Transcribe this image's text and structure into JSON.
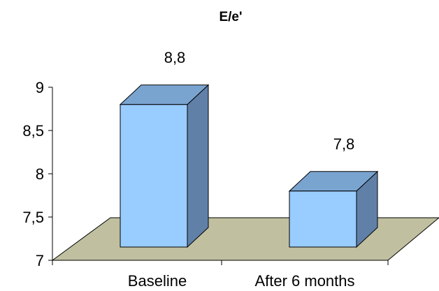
{
  "chart_data": {
    "type": "bar",
    "title": "E/e'",
    "categories": [
      "Baseline",
      "After 6 months"
    ],
    "series": [
      {
        "values": [
          8.8,
          7.8
        ],
        "data_labels": [
          "8,8",
          "7,8"
        ]
      }
    ],
    "ylim": [
      7,
      9
    ],
    "yticks": [
      7,
      7.5,
      8,
      8.5,
      9
    ],
    "ytick_labels": [
      "7",
      "7,5",
      "8",
      "8,5",
      "9"
    ],
    "grid": false,
    "legend": "none",
    "style": "3d-column",
    "colors": {
      "bar_front": "#99ccff",
      "bar_side": "#6080a8",
      "bar_top": "#7aa4d0",
      "floor": "#c0c0a0",
      "outline": "#000000"
    }
  }
}
